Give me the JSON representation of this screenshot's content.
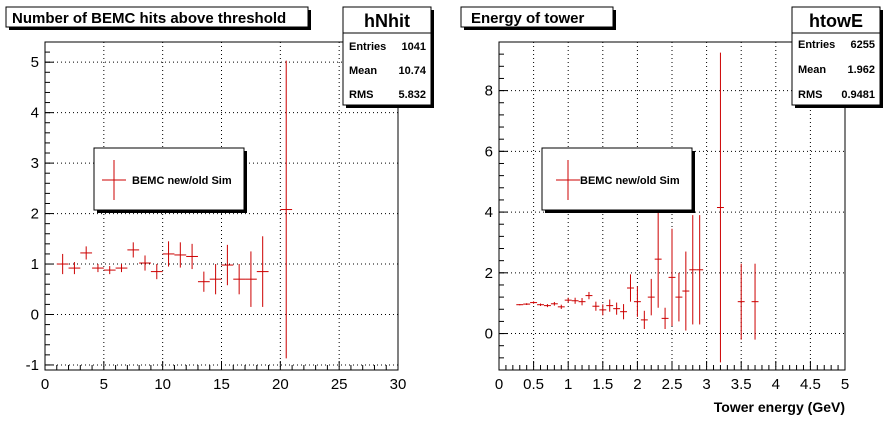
{
  "colors": {
    "marker": "#cc0000",
    "frame": "#000000",
    "background": "#ffffff"
  },
  "chart_data": [
    {
      "type": "scatter",
      "title": "Number of BEMC hits above threshold",
      "xlabel": "",
      "ylabel": "",
      "xlim": [
        0,
        30
      ],
      "ylim": [
        -1.1,
        5.4
      ],
      "grid": true,
      "x_ticks": [
        "0",
        "5",
        "10",
        "15",
        "20",
        "25",
        "30"
      ],
      "y_ticks": [
        "-1",
        "0",
        "1",
        "2",
        "3",
        "4",
        "5"
      ],
      "stats": {
        "name": "hNhit",
        "rows": [
          {
            "label": "Entries",
            "value": "1041"
          },
          {
            "label": "Mean",
            "value": "10.74"
          },
          {
            "label": "RMS",
            "value": "5.832"
          }
        ]
      },
      "legend": {
        "placement": "middle-left",
        "entries": [
          "BEMC new/old Sim"
        ]
      },
      "series": [
        {
          "name": "BEMC new/old Sim",
          "points": [
            {
              "x": 1.5,
              "y": 1.0,
              "xerr": 0.5,
              "yerr": 0.2
            },
            {
              "x": 2.5,
              "y": 0.92,
              "xerr": 0.5,
              "yerr": 0.12
            },
            {
              "x": 3.5,
              "y": 1.22,
              "xerr": 0.5,
              "yerr": 0.13
            },
            {
              "x": 4.5,
              "y": 0.92,
              "xerr": 0.5,
              "yerr": 0.08
            },
            {
              "x": 5.5,
              "y": 0.88,
              "xerr": 0.5,
              "yerr": 0.08
            },
            {
              "x": 6.5,
              "y": 0.92,
              "xerr": 0.5,
              "yerr": 0.08
            },
            {
              "x": 7.5,
              "y": 1.28,
              "xerr": 0.5,
              "yerr": 0.15
            },
            {
              "x": 8.5,
              "y": 1.02,
              "xerr": 0.5,
              "yerr": 0.15
            },
            {
              "x": 9.5,
              "y": 0.85,
              "xerr": 0.5,
              "yerr": 0.15
            },
            {
              "x": 10.5,
              "y": 1.2,
              "xerr": 0.5,
              "yerr": 0.25
            },
            {
              "x": 11.5,
              "y": 1.18,
              "xerr": 0.5,
              "yerr": 0.25
            },
            {
              "x": 12.5,
              "y": 1.15,
              "xerr": 0.5,
              "yerr": 0.25
            },
            {
              "x": 13.5,
              "y": 0.65,
              "xerr": 0.5,
              "yerr": 0.2
            },
            {
              "x": 14.5,
              "y": 0.7,
              "xerr": 0.5,
              "yerr": 0.3
            },
            {
              "x": 15.5,
              "y": 0.98,
              "xerr": 0.5,
              "yerr": 0.4
            },
            {
              "x": 16.5,
              "y": 0.7,
              "xerr": 0.5,
              "yerr": 0.3
            },
            {
              "x": 17.5,
              "y": 0.7,
              "xerr": 0.5,
              "yerr": 0.55
            },
            {
              "x": 18.5,
              "y": 0.85,
              "xerr": 0.5,
              "yerr": 0.7
            },
            {
              "x": 20.5,
              "y": 2.08,
              "xerr": 0.5,
              "yerr": 2.95
            }
          ]
        }
      ]
    },
    {
      "type": "scatter",
      "title": "Energy of tower",
      "xlabel": "Tower energy (GeV)",
      "ylabel": "",
      "xlim": [
        0,
        5
      ],
      "ylim": [
        -1.2,
        9.6
      ],
      "grid": true,
      "x_ticks": [
        "0",
        "0.5",
        "1",
        "1.5",
        "2",
        "2.5",
        "3",
        "3.5",
        "4",
        "4.5",
        "5"
      ],
      "y_ticks": [
        "0",
        "2",
        "4",
        "6",
        "8"
      ],
      "stats": {
        "name": "htowE",
        "rows": [
          {
            "label": "Entries",
            "value": "6255"
          },
          {
            "label": "Mean",
            "value": "1.962"
          },
          {
            "label": "RMS",
            "value": "0.9481"
          }
        ]
      },
      "legend": {
        "placement": "middle-left",
        "entries": [
          "BEMC new/old Sim"
        ]
      },
      "series": [
        {
          "name": "BEMC new/old Sim",
          "points": [
            {
              "x": 0.3,
              "y": 0.95,
              "xerr": 0.05,
              "yerr": 0.02
            },
            {
              "x": 0.4,
              "y": 0.97,
              "xerr": 0.05,
              "yerr": 0.03
            },
            {
              "x": 0.5,
              "y": 1.02,
              "xerr": 0.05,
              "yerr": 0.04
            },
            {
              "x": 0.6,
              "y": 0.95,
              "xerr": 0.05,
              "yerr": 0.04
            },
            {
              "x": 0.7,
              "y": 0.92,
              "xerr": 0.05,
              "yerr": 0.05
            },
            {
              "x": 0.8,
              "y": 0.98,
              "xerr": 0.05,
              "yerr": 0.06
            },
            {
              "x": 0.9,
              "y": 0.88,
              "xerr": 0.05,
              "yerr": 0.07
            },
            {
              "x": 1.0,
              "y": 1.1,
              "xerr": 0.05,
              "yerr": 0.08
            },
            {
              "x": 1.1,
              "y": 1.08,
              "xerr": 0.05,
              "yerr": 0.1
            },
            {
              "x": 1.2,
              "y": 1.05,
              "xerr": 0.05,
              "yerr": 0.12
            },
            {
              "x": 1.3,
              "y": 1.25,
              "xerr": 0.05,
              "yerr": 0.12
            },
            {
              "x": 1.4,
              "y": 0.9,
              "xerr": 0.05,
              "yerr": 0.15
            },
            {
              "x": 1.5,
              "y": 0.78,
              "xerr": 0.05,
              "yerr": 0.18
            },
            {
              "x": 1.6,
              "y": 0.92,
              "xerr": 0.05,
              "yerr": 0.2
            },
            {
              "x": 1.7,
              "y": 0.82,
              "xerr": 0.05,
              "yerr": 0.2
            },
            {
              "x": 1.8,
              "y": 0.72,
              "xerr": 0.05,
              "yerr": 0.25
            },
            {
              "x": 1.9,
              "y": 1.5,
              "xerr": 0.05,
              "yerr": 0.45
            },
            {
              "x": 2.0,
              "y": 1.05,
              "xerr": 0.05,
              "yerr": 0.5
            },
            {
              "x": 2.1,
              "y": 0.45,
              "xerr": 0.05,
              "yerr": 0.3
            },
            {
              "x": 2.2,
              "y": 1.2,
              "xerr": 0.05,
              "yerr": 0.6
            },
            {
              "x": 2.3,
              "y": 2.45,
              "xerr": 0.05,
              "yerr": 1.6
            },
            {
              "x": 2.4,
              "y": 0.5,
              "xerr": 0.05,
              "yerr": 0.35
            },
            {
              "x": 2.5,
              "y": 1.85,
              "xerr": 0.05,
              "yerr": 1.6
            },
            {
              "x": 2.6,
              "y": 1.2,
              "xerr": 0.05,
              "yerr": 0.8
            },
            {
              "x": 2.7,
              "y": 1.4,
              "xerr": 0.05,
              "yerr": 1.3
            },
            {
              "x": 2.8,
              "y": 2.1,
              "xerr": 0.05,
              "yerr": 1.8
            },
            {
              "x": 2.9,
              "y": 2.1,
              "xerr": 0.05,
              "yerr": 1.8
            },
            {
              "x": 3.2,
              "y": 4.15,
              "xerr": 0.05,
              "yerr": 5.1
            },
            {
              "x": 3.5,
              "y": 1.05,
              "xerr": 0.05,
              "yerr": 1.25
            },
            {
              "x": 3.7,
              "y": 1.05,
              "xerr": 0.05,
              "yerr": 1.25
            }
          ]
        }
      ]
    }
  ]
}
